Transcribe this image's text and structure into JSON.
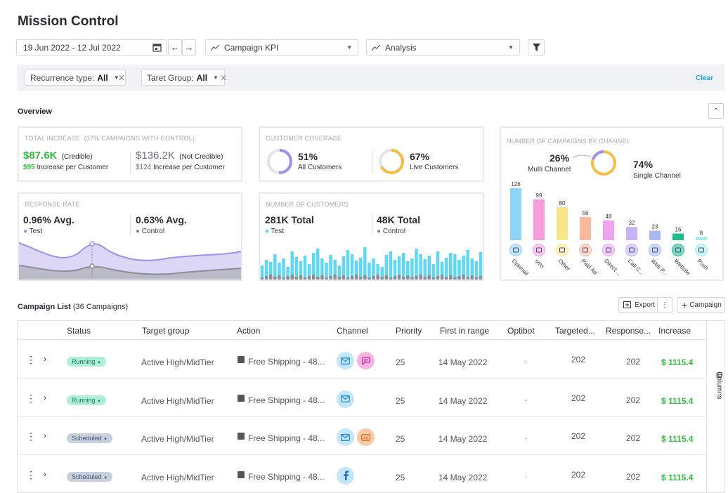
{
  "page": {
    "title": "Mission Control"
  },
  "toolbar": {
    "date_range": "19 Jun 2022 - 12 Jul 2022",
    "kpi_dropdown": "Campaign KPI",
    "analysis_dropdown": "Analysis"
  },
  "filters": {
    "recurrence_label": "Recurrence type:",
    "recurrence_value": "All",
    "target_label": "Taret Group:",
    "target_value": "All",
    "clear": "Clear"
  },
  "overview": {
    "label": "Overview",
    "total_increase": {
      "title": "TOTAL INCREASE",
      "subtitle": "(37% CAMPAIGNS WITH CONTROL)",
      "credible_value": "$87.6K",
      "credible_label": "(Credible)",
      "credible_per": "$95",
      "credible_per_label": "Increase per Customer",
      "noncred_value": "$136.2K",
      "noncred_label": "(Not Credible)",
      "noncred_per": "$124",
      "noncred_per_label": "Increase per Customer"
    },
    "customer_coverage": {
      "title": "CUSTOMER COVERAGE",
      "all_pct": "51%",
      "all_label": "All Customers",
      "all_fraction": 0.51,
      "live_pct": "67%",
      "live_label": "Live Customers",
      "live_fraction": 0.67
    },
    "response_rate": {
      "title": "RESPONSE RATE",
      "test_value": "0.96% Avg.",
      "test_label": "Test",
      "control_value": "0.63% Avg.",
      "control_label": "Control"
    },
    "num_customers": {
      "title": "NUMBER OF CUSTOMERS",
      "test_value": "281K Total",
      "test_label": "Test",
      "control_value": "48K Total",
      "control_label": "Control"
    },
    "campaigns_by_channel": {
      "title": "NUMBER OF CAMPAIGNS BY CHANNEL",
      "multi_pct": "26%",
      "multi_label": "Multi Channel",
      "single_pct": "74%",
      "single_label": "Single Channel"
    }
  },
  "chart_data": {
    "type": "bar",
    "categories": [
      "Optimail",
      "sms",
      "Other",
      "Paid Ad",
      "Direct ...",
      "Call C...",
      "Web P...",
      "Website",
      "Push"
    ],
    "values": [
      126,
      99,
      80,
      56,
      48,
      32,
      23,
      16,
      8
    ],
    "colors": [
      "#8fd3f5",
      "#f59ed9",
      "#fbe58a",
      "#f9b99a",
      "#f0a3ee",
      "#c7b2f5",
      "#a9b9ef",
      "#1ebc8f",
      "#9ff0e6"
    ],
    "icons": [
      "mail-icon",
      "chat-icon",
      "other-icon",
      "ad-icon",
      "direct-mail-icon",
      "headset-icon",
      "web-push-icon",
      "website-icon",
      "phone-icon"
    ]
  },
  "campaign_list": {
    "label": "Campaign List",
    "count": "(36 Campaigns)",
    "export": "Export",
    "add_campaign": "Campaign",
    "columns_label": "Columns",
    "headers": [
      "Status",
      "Target group",
      "Action",
      "Channel",
      "Priority",
      "First in range",
      "Optibot",
      "Targeted...",
      "Response...",
      "Increase"
    ],
    "rows": [
      {
        "status": "Running",
        "status_type": "run",
        "target": "Active High/MidTier",
        "action": "Free Shipping - 48...",
        "channels": [
          "mail",
          "chat"
        ],
        "priority": "25",
        "first": "14 May 2022",
        "optibot": ".",
        "targeted": "202",
        "response": "202",
        "increase": "$ 1115.4"
      },
      {
        "status": "Running",
        "status_type": "run",
        "target": "Active High/MidTier",
        "action": "Free Shipping - 48...",
        "channels": [
          "mail"
        ],
        "priority": "25",
        "first": "14 May 2022",
        "optibot": ".",
        "targeted": "202",
        "response": "202",
        "increase": "$ 1115.4"
      },
      {
        "status": "Scheduled",
        "status_type": "sch",
        "target": "Active High/MidTier",
        "action": "Free Shipping - 48...",
        "channels": [
          "mail",
          "ad"
        ],
        "priority": "25",
        "first": "14 May 2022",
        "optibot": ".",
        "targeted": "202",
        "response": "202",
        "increase": "$ 1115.4"
      },
      {
        "status": "Scheduled",
        "status_type": "sch",
        "target": "Active High/MidTier",
        "action": "Free Shipping - 48...",
        "channels": [
          "facebook"
        ],
        "priority": "25",
        "first": "14 May 2022",
        "optibot": ".",
        "targeted": "202",
        "response": "202",
        "increase": "$ 1115.4"
      }
    ]
  }
}
